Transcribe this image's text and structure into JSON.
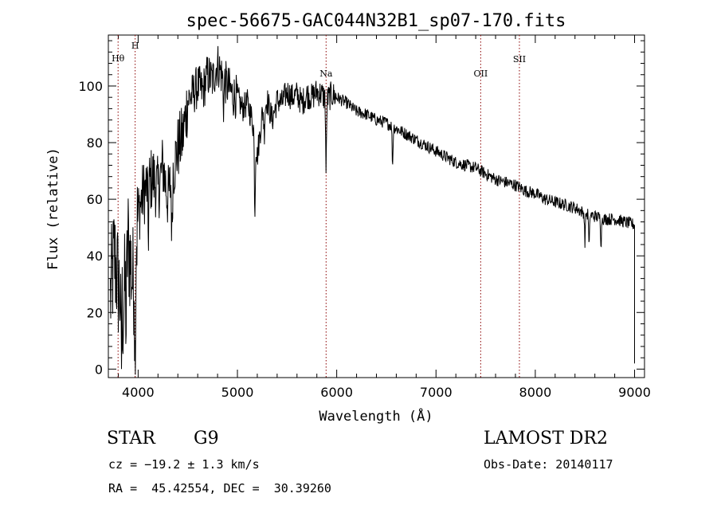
{
  "chart_data": {
    "type": "line",
    "title": "spec-56675-GAC044N32B1_sp07-170.fits",
    "xlabel": "Wavelength (Å)",
    "ylabel": "Flux (relative)",
    "xlim": [
      3700,
      9100
    ],
    "ylim": [
      -3,
      118
    ],
    "x_ticks": [
      4000,
      5000,
      6000,
      7000,
      8000,
      9000
    ],
    "y_ticks": [
      0,
      20,
      40,
      60,
      80,
      100
    ],
    "grid": false,
    "line_color": "#000000",
    "marker_color": "#8b0000",
    "lines": [
      {
        "label": "Hθ",
        "x": 3798
      },
      {
        "label": "H",
        "x": 3970
      },
      {
        "label": "Na",
        "x": 5893
      },
      {
        "label": "OII",
        "x": 7450
      },
      {
        "label": "SII",
        "x": 7840
      }
    ],
    "series": [
      {
        "x": [
          3720,
          3760,
          3800,
          3850,
          3900,
          3950,
          4000,
          4050,
          4100,
          4150,
          4200,
          4250,
          4300,
          4350,
          4400,
          4450,
          4500,
          4550,
          4600,
          4650,
          4700,
          4750,
          4800,
          4850,
          4900,
          4950,
          5000,
          5050,
          5100,
          5150,
          5200,
          5250,
          5300,
          5350,
          5400,
          5450,
          5500,
          5550,
          5600,
          5650,
          5700,
          5750,
          5800,
          5850,
          5900,
          5950,
          6000,
          6100,
          6200,
          6300,
          6400,
          6500,
          6600,
          6700,
          6800,
          6900,
          7000,
          7100,
          7200,
          7300,
          7400,
          7500,
          7600,
          7700,
          7800,
          7900,
          8000,
          8100,
          8200,
          8300,
          8400,
          8500,
          8600,
          8700,
          8800,
          8900,
          9000
        ],
        "y": [
          25,
          40,
          30,
          20,
          45,
          30,
          55,
          62,
          65,
          68,
          63,
          72,
          60,
          70,
          78,
          82,
          95,
          97,
          100,
          98,
          104,
          102,
          108,
          103,
          100,
          97,
          96,
          92,
          94,
          88,
          75,
          90,
          95,
          88,
          95,
          94,
          98,
          96,
          97,
          94,
          97,
          96,
          98,
          97,
          95,
          97,
          96,
          94,
          91,
          90,
          88,
          87,
          85,
          83,
          81,
          79,
          77,
          75,
          73,
          72,
          71,
          69,
          67,
          66,
          65,
          63,
          62,
          60,
          59,
          58,
          57,
          55,
          54,
          53,
          53,
          52,
          51
        ]
      }
    ],
    "absorption": [
      {
        "x": 3830,
        "depth": 25
      },
      {
        "x": 3880,
        "depth": 20
      },
      {
        "x": 3970,
        "depth": 45
      },
      {
        "x": 4102,
        "depth": 20
      },
      {
        "x": 4340,
        "depth": 22
      },
      {
        "x": 4861,
        "depth": 10
      },
      {
        "x": 5175,
        "depth": 28
      },
      {
        "x": 5270,
        "depth": 10
      },
      {
        "x": 5893,
        "depth": 28
      },
      {
        "x": 6563,
        "depth": 15
      },
      {
        "x": 8500,
        "depth": 10
      },
      {
        "x": 8542,
        "depth": 13
      },
      {
        "x": 8662,
        "depth": 10
      }
    ]
  },
  "footer": {
    "object_type": "STAR",
    "subclass": "G9",
    "redshift": "cz = −19.2 ± 1.3 km/s",
    "coords": "RA =  45.42554, DEC =  30.39260",
    "survey": "LAMOST DR2",
    "obs_date": "Obs-Date: 20140117"
  }
}
